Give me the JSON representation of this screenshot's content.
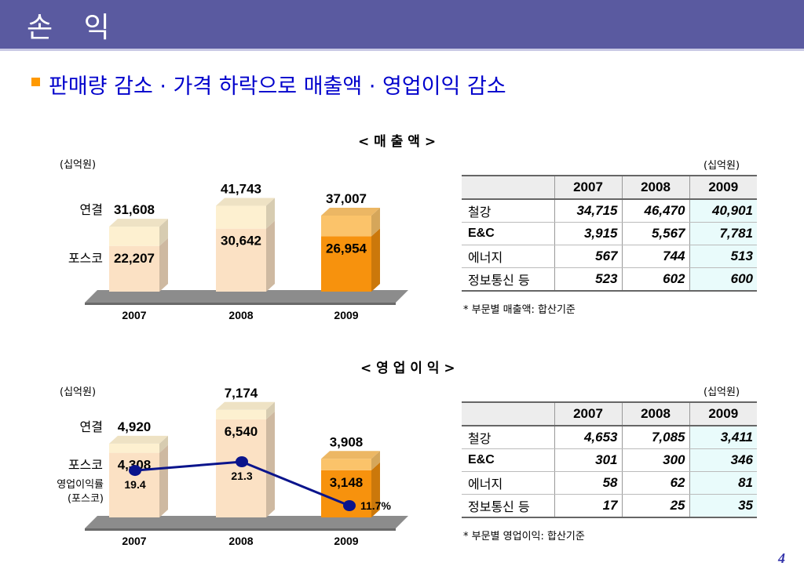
{
  "header": {
    "title": "손 익"
  },
  "headline": "판매량 감소 · 가격 하락으로 매출액 · 영업이익 감소",
  "sales": {
    "title": "< 매  출  액 >",
    "unit_chart": "(십억원)",
    "unit_table": "(십억원)",
    "table": {
      "headers": [
        "",
        "2007",
        "2008",
        "2009"
      ],
      "rows": [
        [
          "철강",
          "34,715",
          "46,470",
          "40,901"
        ],
        [
          "E&C",
          "3,915",
          "5,567",
          "7,781"
        ],
        [
          "에너지",
          "567",
          "744",
          "513"
        ],
        [
          "정보통신 등",
          "523",
          "602",
          "600"
        ]
      ]
    },
    "note": "* 부문별 매출액: 합산기준"
  },
  "op": {
    "title": "< 영 업 이 익 >",
    "unit_chart": "(십억원)",
    "unit_table": "(십억원)",
    "table": {
      "headers": [
        "",
        "2007",
        "2008",
        "2009"
      ],
      "rows": [
        [
          "철강",
          "4,653",
          "7,085",
          "3,411"
        ],
        [
          "E&C",
          "301",
          "300",
          "346"
        ],
        [
          "에너지",
          "58",
          "62",
          "81"
        ],
        [
          "정보통신 등",
          "17",
          "25",
          "35"
        ]
      ]
    },
    "note": "* 부문별 영업이익: 합산기준"
  },
  "page_number": "4",
  "colors": {
    "header": "#5a5aa0",
    "headline": "#0000cc",
    "bar_light_top": "#fdf0d0",
    "bar_light_bottom": "#fbe1c4",
    "bar_orange_top": "#fbc36a",
    "bar_orange_bottom": "#f7920d",
    "margin_line": "#0a148c"
  },
  "chart_data": [
    {
      "type": "bar",
      "stacked": true,
      "categories": [
        "2007",
        "2008",
        "2009"
      ],
      "row_labels": [
        "연결",
        "포스코"
      ],
      "series": [
        {
          "name": "포스코",
          "values": [
            22207,
            30642,
            26954
          ]
        }
      ],
      "totals": [
        31608,
        41743,
        37007
      ],
      "total_labels": [
        "31,608",
        "41,743",
        "37,007"
      ],
      "posco_labels": [
        "22,207",
        "30,642",
        "26,954"
      ],
      "ylim": [
        0,
        45000
      ]
    },
    {
      "type": "bar",
      "stacked": true,
      "categories": [
        "2007",
        "2008",
        "2009"
      ],
      "row_labels": [
        "연결",
        "포스코",
        "영업이익률\n(포스코)"
      ],
      "series": [
        {
          "name": "포스코",
          "values": [
            4308,
            6540,
            3148
          ]
        }
      ],
      "totals": [
        4920,
        7174,
        3908
      ],
      "total_labels": [
        "4,920",
        "7,174",
        "3,908"
      ],
      "posco_labels": [
        "4,308",
        "6,540",
        "3,148"
      ],
      "line": {
        "values": [
          19.4,
          21.3,
          11.7
        ],
        "labels": [
          "19.4",
          "21.3",
          "11.7%"
        ]
      },
      "ylim": [
        0,
        8000
      ]
    }
  ]
}
